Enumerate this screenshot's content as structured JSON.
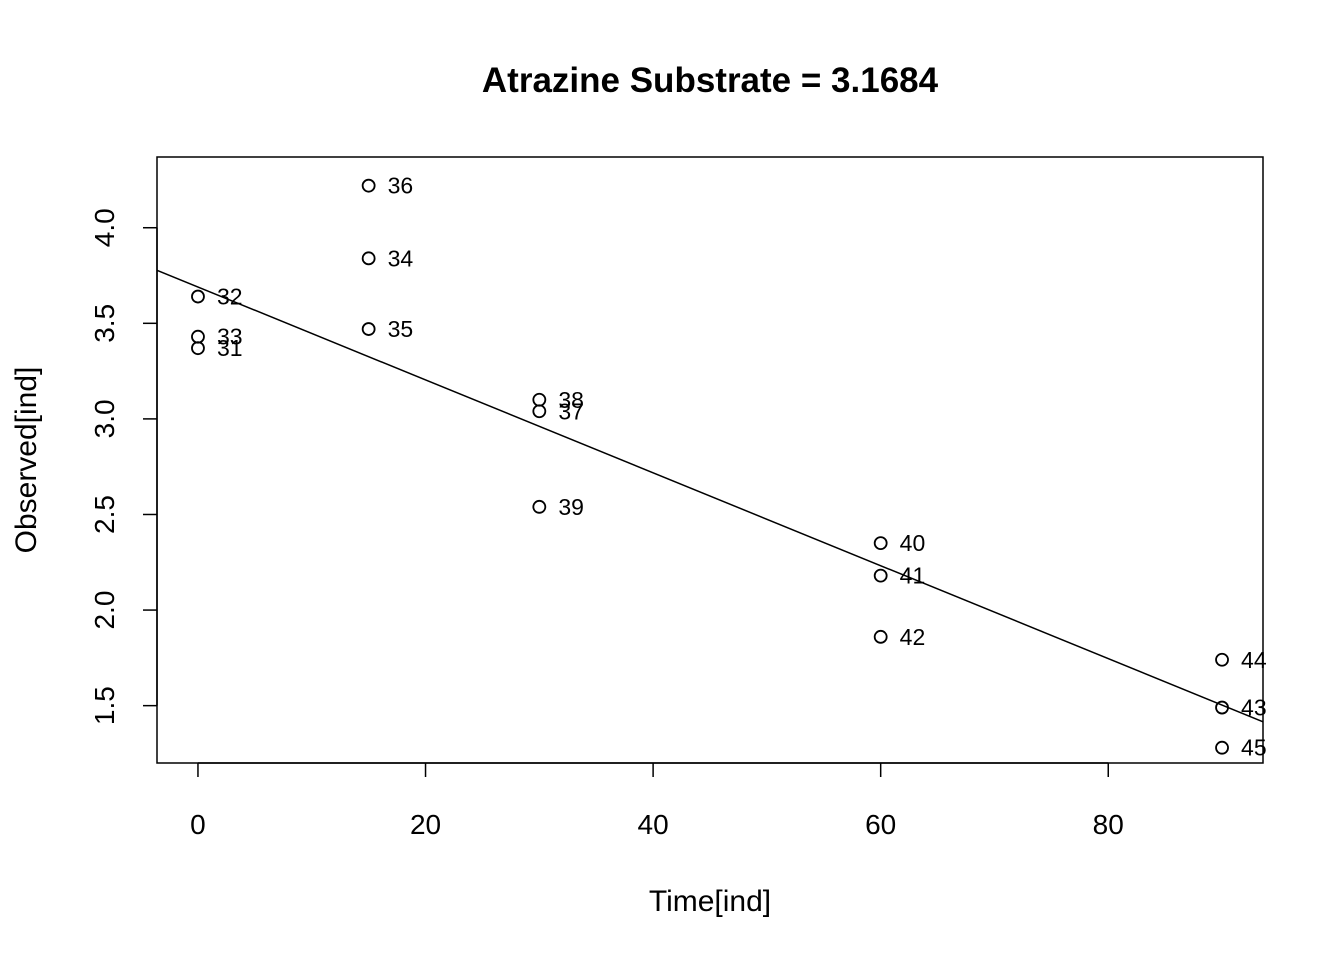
{
  "chart_data": {
    "type": "scatter",
    "title": "Atrazine Substrate = 3.1684",
    "xlabel": "Time[ind]",
    "ylabel": "Observed[ind]",
    "xlim": [
      -3.6,
      93.6
    ],
    "ylim": [
      1.2,
      4.37
    ],
    "x_ticks": [
      0,
      20,
      40,
      60,
      80
    ],
    "y_ticks": [
      1.5,
      2.0,
      2.5,
      3.0,
      3.5,
      4.0
    ],
    "x_tick_labels": [
      "0",
      "20",
      "40",
      "60",
      "80"
    ],
    "y_tick_labels": [
      "1.5",
      "2.0",
      "2.5",
      "3.0",
      "3.5",
      "4.0"
    ],
    "grid": false,
    "legend": "none",
    "points": [
      {
        "label": "31",
        "x": 0,
        "y": 3.37
      },
      {
        "label": "32",
        "x": 0,
        "y": 3.64
      },
      {
        "label": "33",
        "x": 0,
        "y": 3.43
      },
      {
        "label": "34",
        "x": 15,
        "y": 3.84
      },
      {
        "label": "35",
        "x": 15,
        "y": 3.47
      },
      {
        "label": "36",
        "x": 15,
        "y": 4.22
      },
      {
        "label": "37",
        "x": 30,
        "y": 3.04
      },
      {
        "label": "38",
        "x": 30,
        "y": 3.1
      },
      {
        "label": "39",
        "x": 30,
        "y": 2.54
      },
      {
        "label": "40",
        "x": 60,
        "y": 2.35
      },
      {
        "label": "41",
        "x": 60,
        "y": 2.18
      },
      {
        "label": "42",
        "x": 60,
        "y": 1.86
      },
      {
        "label": "43",
        "x": 90,
        "y": 1.49
      },
      {
        "label": "44",
        "x": 90,
        "y": 1.74
      },
      {
        "label": "45",
        "x": 90,
        "y": 1.28
      }
    ],
    "fit_line": {
      "intercept": 3.69,
      "slope": -0.0243
    }
  }
}
